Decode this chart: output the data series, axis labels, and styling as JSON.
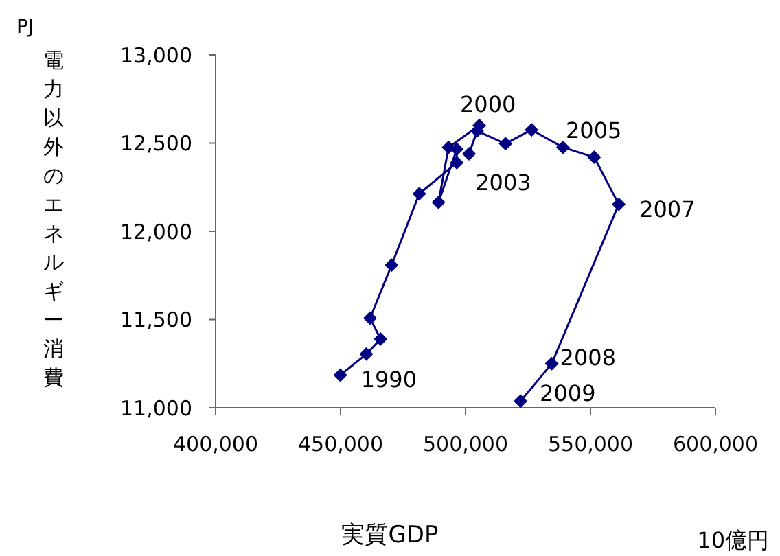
{
  "chart_data": {
    "type": "line",
    "xlabel": "実質GDP",
    "ylabel": "電力以外のエネルギー消費",
    "x": [
      449900,
      460300,
      466000,
      461800,
      470400,
      481500,
      496500,
      496500,
      489200,
      493200,
      505500,
      501400,
      504600,
      516000,
      526400,
      539000,
      551500,
      561300,
      534500,
      522000
    ],
    "series": [
      {
        "color": "#000080",
        "values": [
          11185,
          11304,
          11389,
          11508,
          11808,
          12213,
          12389,
          12466,
          12164,
          12476,
          12600,
          12440,
          12569,
          12497,
          12575,
          12476,
          12420,
          12153,
          11250,
          11037
        ]
      }
    ],
    "xlim": [
      400000,
      600000
    ],
    "xticks": [
      {
        "value": 400000,
        "label": "400,000"
      },
      {
        "value": 450000,
        "label": "450,000"
      },
      {
        "value": 500000,
        "label": "500,000"
      },
      {
        "value": 550000,
        "label": "550,000"
      },
      {
        "value": 600000,
        "label": "600,000"
      }
    ],
    "ylim": [
      11000,
      13000
    ],
    "yticks": [
      {
        "value": 11000,
        "label": "11,000"
      },
      {
        "value": 11500,
        "label": "11,500"
      },
      {
        "value": 12000,
        "label": "12,000"
      },
      {
        "value": 12500,
        "label": "12,500"
      },
      {
        "value": 13000,
        "label": "13,000"
      }
    ],
    "marker": "diamond",
    "grid": false,
    "legend": false,
    "annotations": [
      "PJ",
      "10億円",
      {
        "text": "1990",
        "x": 449900,
        "y": 11185
      },
      {
        "text": "2000",
        "x": 505500,
        "y": 12600
      },
      {
        "text": "2003",
        "x": 516000,
        "y": 12497
      },
      {
        "text": "2005",
        "x": 539000,
        "y": 12476
      },
      {
        "text": "2007",
        "x": 561300,
        "y": 12153
      },
      {
        "text": "2008",
        "x": 534500,
        "y": 11250
      },
      {
        "text": "2009",
        "x": 522000,
        "y": 11037
      }
    ]
  }
}
